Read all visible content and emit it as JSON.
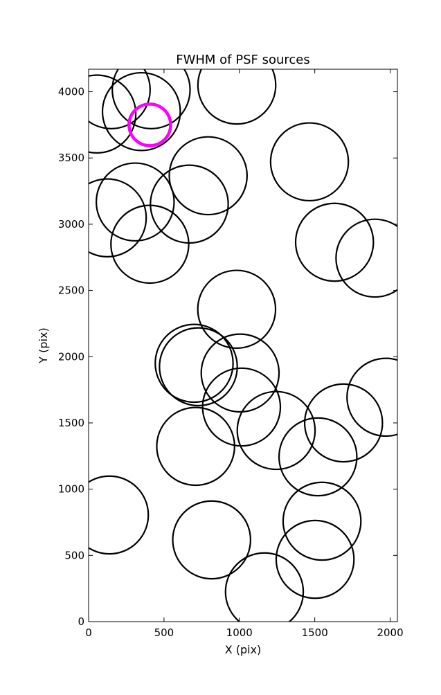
{
  "chart_data": {
    "type": "scatter",
    "title": "FWHM of PSF sources",
    "x_label": "X (pix)",
    "y_label": "Y (pix)",
    "xlim": [
      0,
      2048
    ],
    "ylim": [
      0,
      4170
    ],
    "xticks": [
      0,
      500,
      1000,
      1500,
      2000
    ],
    "yticks": [
      0,
      500,
      1000,
      1500,
      2000,
      2500,
      3000,
      3500,
      4000
    ],
    "series": [
      {
        "name": "sources",
        "color": "#000000",
        "x": [
          55,
          150,
          350,
          415,
          983,
          793,
          1465,
          309,
          124,
          668,
          406,
          1631,
          1899,
          982,
          700,
          728,
          1005,
          1014,
          1244,
          1691,
          1972,
          1521,
          710,
          138,
          816,
          1548,
          1502,
          1166
        ],
        "values": [
          3832,
          4015,
          3850,
          4015,
          4050,
          3366,
          3471,
          3168,
          3048,
          3152,
          2849,
          2864,
          2744,
          2358,
          1950,
          1924,
          1877,
          1620,
          1443,
          1500,
          1694,
          1244,
          1323,
          805,
          617,
          758,
          470,
          225
        ],
        "sizes": [
          258,
          258,
          258,
          258,
          258,
          258,
          258,
          258,
          258,
          258,
          258,
          258,
          258,
          258,
          258,
          258,
          258,
          258,
          258,
          258,
          258,
          258,
          258,
          258,
          258,
          258,
          258,
          258
        ]
      },
      {
        "name": "selected",
        "color": "#ff00ff",
        "x": [
          406
        ],
        "values": [
          3750
        ],
        "sizes": [
          138
        ]
      }
    ]
  }
}
